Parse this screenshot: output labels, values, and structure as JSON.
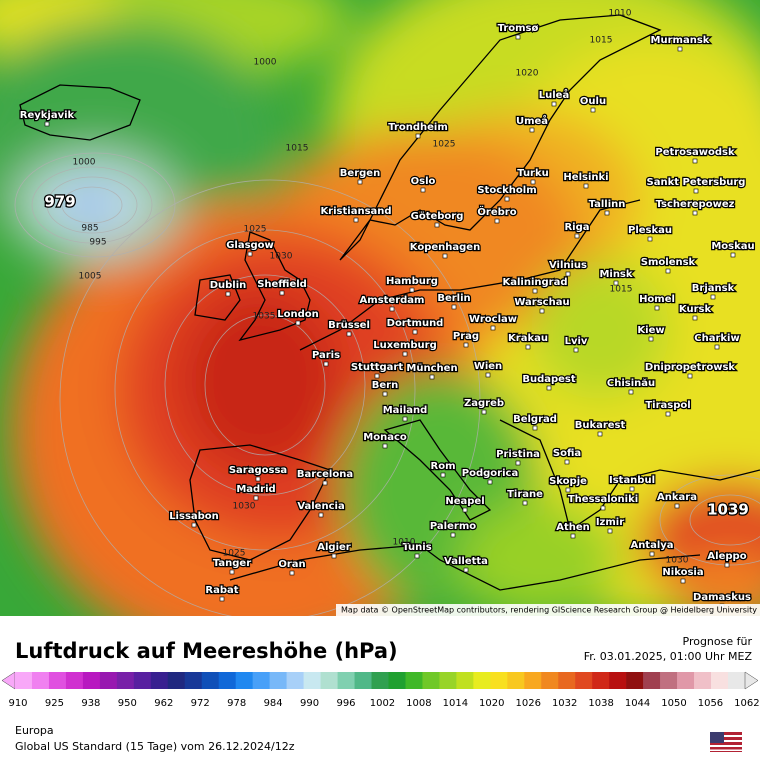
{
  "header": {
    "title": "Luftdruck auf Meereshöhe (hPa)",
    "forecast_label": "Prognose für",
    "forecast_time": "Fr. 03.01.2025, 01:00 Uhr MEZ"
  },
  "map": {
    "attribution": "Map data © OpenStreetMap contributors, rendering GIScience Research Group @ Heidelberg University",
    "cities": [
      "Reykjavik",
      "Tromsø",
      "Murmansk",
      "Luleå",
      "Oulu",
      "Umeå",
      "Trondheim",
      "Petrosawodsk",
      "Bergen",
      "Oslo",
      "Turku",
      "Helsinki",
      "Sankt Petersburg",
      "Stockholm",
      "Kristiansand",
      "Göteborg",
      "Örebro",
      "Tallinn",
      "Tscherepowez",
      "Glasgow",
      "Kopenhagen",
      "Riga",
      "Pleskau",
      "Moskau",
      "Dublin",
      "Sheffield",
      "Hamburg",
      "Vilnius",
      "Smolensk",
      "Kaliningrad",
      "Minsk",
      "Brjansk",
      "Amsterdam",
      "Berlin",
      "Warschau",
      "Homel",
      "Kursk",
      "London",
      "Brüssel",
      "Dortmund",
      "Wroclaw",
      "Krakau",
      "Kiew",
      "Charkiw",
      "Prag",
      "Paris",
      "Luxemburg",
      "Lviv",
      "Stuttgart",
      "München",
      "Wien",
      "Dnipropetrowsk",
      "Budapest",
      "Chisinău",
      "Bern",
      "Mailand",
      "Zagreb",
      "Tiraspol",
      "Belgrad",
      "Bukarest",
      "Monaco",
      "Pristina",
      "Sofia",
      "Saragossa",
      "Barcelona",
      "Rom",
      "Podgorica",
      "Istanbul",
      "Madrid",
      "Skopje",
      "Tirane",
      "Ankara",
      "Thessaloniki",
      "Valencia",
      "Neapel",
      "Lissabon",
      "Izmir",
      "Athen",
      "Palermo",
      "Algier",
      "Tunis",
      "Antalya",
      "Aleppo",
      "Tanger",
      "Oran",
      "Valletta",
      "Nikosia",
      "Rabat",
      "Damaskus"
    ],
    "pressure_labels": [
      "1010",
      "1015",
      "1000",
      "1020",
      "1000",
      "1015",
      "979",
      "985",
      "995",
      "1005",
      "1025",
      "1025",
      "1030",
      "1035",
      "1015",
      "1030",
      "1025",
      "1010",
      "1030",
      "1039"
    ]
  },
  "colorbar": {
    "ticks": [
      910,
      925,
      938,
      950,
      962,
      972,
      978,
      984,
      990,
      996,
      1002,
      1008,
      1014,
      1020,
      1026,
      1032,
      1038,
      1044,
      1050,
      1056,
      1062
    ],
    "colors": [
      "#f8a8f8",
      "#f080f0",
      "#e050e0",
      "#d030d0",
      "#b818c0",
      "#9818b0",
      "#7820a8",
      "#5820a0",
      "#382090",
      "#202880",
      "#183898",
      "#1050b8",
      "#1068d8",
      "#2088f0",
      "#48a0f8",
      "#78b8f8",
      "#a8d0f8",
      "#c8e8f0",
      "#b0e0d0",
      "#80d0b0",
      "#50b888",
      "#30a050",
      "#20a030",
      "#40b828",
      "#70c828",
      "#98d428",
      "#c0e020",
      "#e8ec20",
      "#f8e020",
      "#f8c820",
      "#f8a820",
      "#f08820",
      "#e86820",
      "#e04820",
      "#d02818",
      "#b81010",
      "#901010",
      "#a04050",
      "#c07080",
      "#e098a8",
      "#f0c0c8",
      "#f8e0e0",
      "#e8e8e8"
    ]
  },
  "footer": {
    "region": "Europa",
    "model": "Global US Standard (15 Tage) vom 26.12.2024/12z"
  }
}
